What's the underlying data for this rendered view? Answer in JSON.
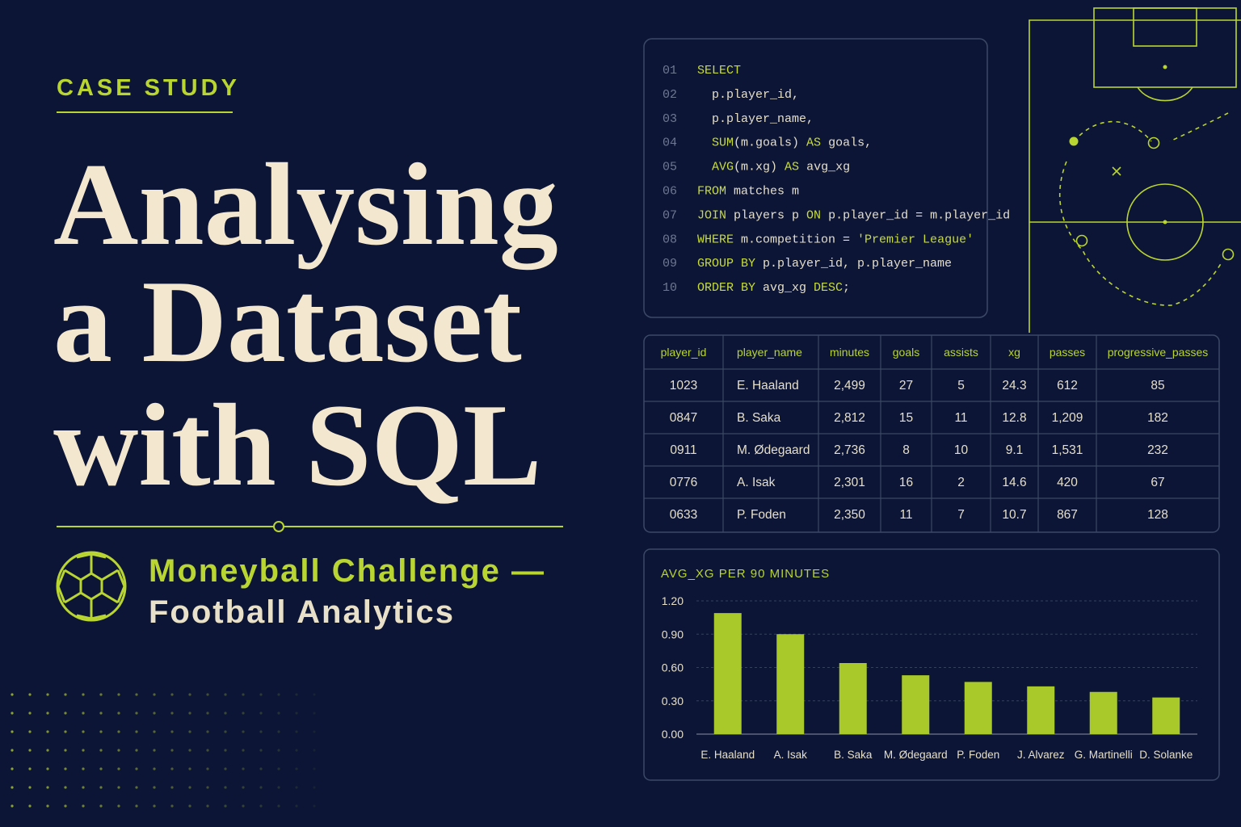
{
  "header": {
    "eyebrow": "CASE STUDY",
    "title_lines": [
      "Analysing",
      "a Dataset",
      "with SQL"
    ],
    "subtitle_lines": [
      "Moneyball Challenge —",
      "Football Analytics"
    ]
  },
  "code": {
    "lines": [
      {
        "number": "01",
        "text": "SELECT"
      },
      {
        "number": "02",
        "text": "  p.player_id,"
      },
      {
        "number": "03",
        "text": "  p.player_name,"
      },
      {
        "number": "04",
        "text": "  SUM(m.goals) AS goals,"
      },
      {
        "number": "05",
        "text": "  AVG(m.xg) AS avg_xg"
      },
      {
        "number": "06",
        "text": "FROM matches m"
      },
      {
        "number": "07",
        "text": "JOIN players p ON p.player_id = m.player_id"
      },
      {
        "number": "08",
        "text": "WHERE m.competition = 'Premier League'"
      },
      {
        "number": "09",
        "text": "GROUP BY p.player_id, p.player_name"
      },
      {
        "number": "10",
        "text": "ORDER BY avg_xg DESC;"
      }
    ]
  },
  "table": {
    "columns": [
      "player_id",
      "player_name",
      "minutes",
      "goals",
      "assists",
      "xg",
      "passes",
      "progressive_passes"
    ],
    "rows": [
      [
        "1023",
        "E. Haaland",
        "2,499",
        "27",
        "5",
        "24.3",
        "612",
        "85"
      ],
      [
        "0847",
        "B. Saka",
        "2,812",
        "15",
        "11",
        "12.8",
        "1,209",
        "182"
      ],
      [
        "0911",
        "M. Ødegaard",
        "2,736",
        "8",
        "10",
        "9.1",
        "1,531",
        "232"
      ],
      [
        "0776",
        "A. Isak",
        "2,301",
        "16",
        "2",
        "14.6",
        "420",
        "67"
      ],
      [
        "0633",
        "P. Foden",
        "2,350",
        "11",
        "7",
        "10.7",
        "867",
        "128"
      ]
    ]
  },
  "chart_data": {
    "type": "bar",
    "title": "AVG_XG PER 90 MINUTES",
    "categories": [
      "E. Haaland",
      "A. Isak",
      "B. Saka",
      "M. Ødegaard",
      "P. Foden",
      "J. Alvarez",
      "G. Martinelli",
      "D. Solanke"
    ],
    "values": [
      1.09,
      0.9,
      0.64,
      0.53,
      0.47,
      0.43,
      0.38,
      0.33
    ],
    "color": "#a8c929",
    "ylim": [
      0,
      1.2
    ],
    "yticks": [
      {
        "value": 0,
        "label": "0.00"
      },
      {
        "value": 0.3,
        "label": "0.30"
      },
      {
        "value": 0.6,
        "label": "0.60"
      },
      {
        "value": 0.9,
        "label": "0.90"
      },
      {
        "value": 1.2,
        "label": "1.20"
      }
    ],
    "grid": true
  }
}
